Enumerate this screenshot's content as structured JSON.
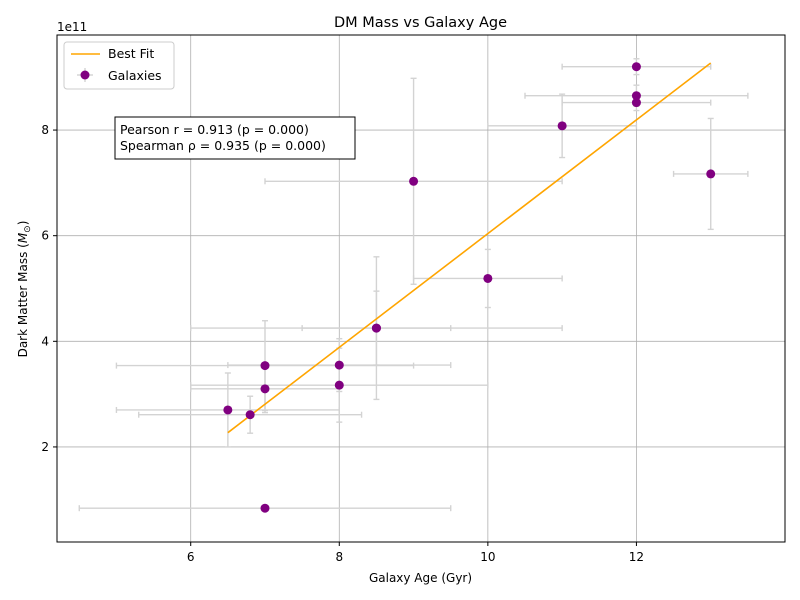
{
  "chart_data": {
    "type": "scatter",
    "title": "DM Mass vs Galaxy Age",
    "xlabel": "Galaxy Age (Gyr)",
    "ylabel_main": "Dark Matter Mass (",
    "ylabel_symbol": "M",
    "ylabel_sub": "⊙",
    "ylabel_close": ")",
    "offset_label": "1e11",
    "xlim": [
      4.2,
      14.0
    ],
    "ylim": [
      0.2,
      9.8
    ],
    "y_scale": 100000000000.0,
    "xticks": [
      6,
      8,
      10,
      12
    ],
    "yticks": [
      2,
      4,
      6,
      8
    ],
    "grid": true,
    "colors": {
      "points": "#800080",
      "errorbars": "#d3d3d3",
      "fit": "#ffa500",
      "grid": "#b0b0b0"
    },
    "series": [
      {
        "name": "Galaxies",
        "points": [
          {
            "x": 12.0,
            "y": 9.2,
            "xerr": 1.0,
            "yerr": 0.15
          },
          {
            "x": 12.0,
            "y": 8.65,
            "xerr": 1.5,
            "yerr": 0.2
          },
          {
            "x": 12.0,
            "y": 8.52,
            "xerr": 1.0,
            "yerr": 0.15
          },
          {
            "x": 11.0,
            "y": 8.08,
            "xerr": 1.0,
            "yerr": 0.6
          },
          {
            "x": 13.0,
            "y": 7.17,
            "xerr": 0.5,
            "yerr": 1.05
          },
          {
            "x": 9.0,
            "y": 7.03,
            "xerr": 2.0,
            "yerr": 1.95
          },
          {
            "x": 10.0,
            "y": 5.19,
            "xerr": 1.0,
            "yerr": 0.55
          },
          {
            "x": 8.5,
            "y": 4.25,
            "xerr": 2.5,
            "yerr": 1.35
          },
          {
            "x": 8.5,
            "y": 4.25,
            "xerr": 1.0,
            "yerr": 0.7
          },
          {
            "x": 8.0,
            "y": 3.55,
            "xerr": 1.5,
            "yerr": 0.5
          },
          {
            "x": 7.0,
            "y": 3.54,
            "xerr": 2.0,
            "yerr": 0.85
          },
          {
            "x": 8.0,
            "y": 3.17,
            "xerr": 2.0,
            "yerr": 0.7
          },
          {
            "x": 7.0,
            "y": 3.1,
            "xerr": 1.0,
            "yerr": 0.45
          },
          {
            "x": 6.5,
            "y": 2.7,
            "xerr": 1.5,
            "yerr": 0.7
          },
          {
            "x": 6.8,
            "y": 2.61,
            "xerr": 1.5,
            "yerr": 0.35
          },
          {
            "x": 7.0,
            "y": 0.84,
            "xerr": 2.5,
            "yerr": 0.0
          }
        ]
      },
      {
        "name": "Best Fit",
        "line": [
          [
            6.5,
            2.27
          ],
          [
            13.0,
            9.27
          ]
        ]
      }
    ],
    "legend": {
      "position": "upper-left",
      "items": [
        "Best Fit",
        "Galaxies"
      ]
    },
    "annotation": {
      "line1": "Pearson r = 0.913 (p = 0.000)",
      "line2": "Spearman ρ = 0.935 (p = 0.000)"
    }
  }
}
